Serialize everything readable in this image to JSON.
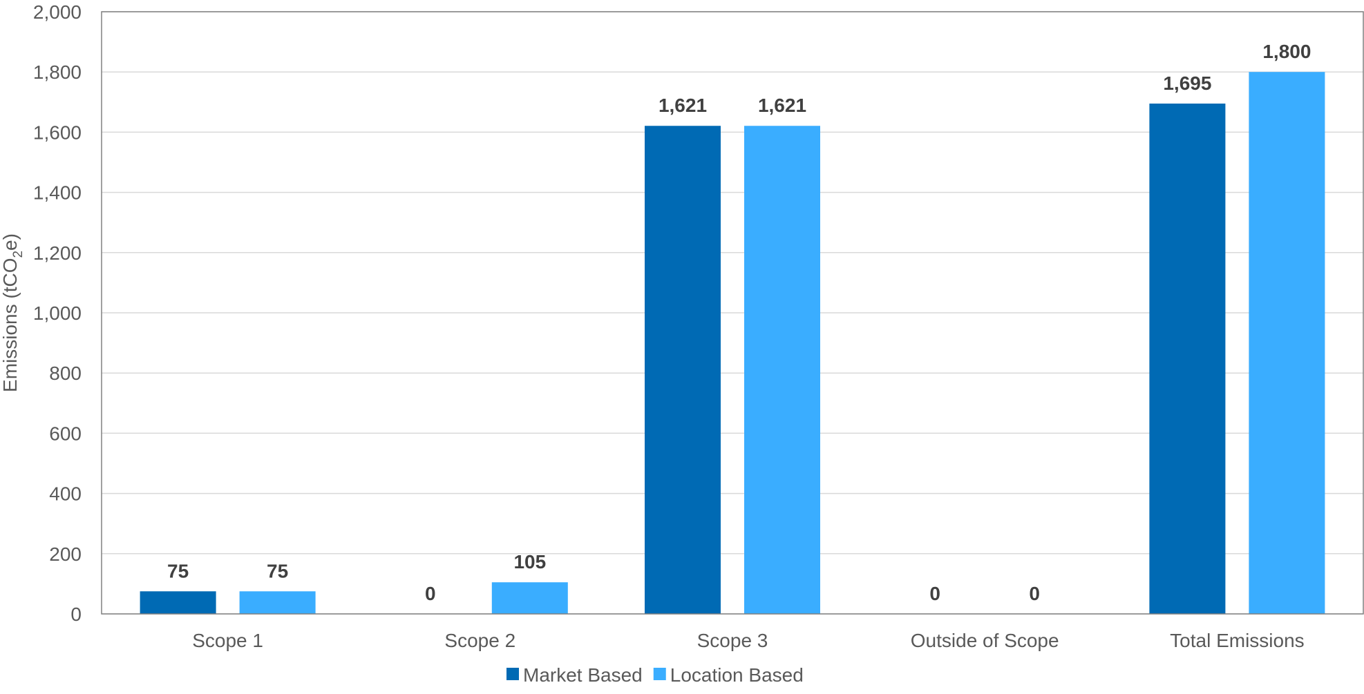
{
  "chart_data": {
    "type": "bar",
    "categories": [
      "Scope 1",
      "Scope 2",
      "Scope 3",
      "Outside of Scope",
      "Total Emissions"
    ],
    "series": [
      {
        "name": "Market Based",
        "values": [
          75,
          0,
          1621,
          0,
          1695
        ],
        "labels": [
          "75",
          "0",
          "1,621",
          "0",
          "1,695"
        ],
        "color": "#006AB4"
      },
      {
        "name": "Location Based",
        "values": [
          75,
          105,
          1621,
          0,
          1800
        ],
        "labels": [
          "75",
          "105",
          "1,621",
          "0",
          "1,800"
        ],
        "color": "#3AADFF"
      }
    ],
    "ylabel_main": "Emissions (tCO",
    "ylabel_sub": "2",
    "ylabel_end": "e)",
    "ylim": [
      0,
      2000
    ],
    "yticks": [
      0,
      200,
      400,
      600,
      800,
      1000,
      1200,
      1400,
      1600,
      1800,
      2000
    ],
    "ytick_labels": [
      "0",
      "200",
      "400",
      "600",
      "800",
      "1,000",
      "1,200",
      "1,400",
      "1,600",
      "1,800",
      "2,000"
    ],
    "grid": true,
    "legend_position": "bottom-center",
    "colors": {
      "grid": "#D9D9D9",
      "axis": "#808080",
      "text": "#595959",
      "data_label": "#404040"
    }
  }
}
